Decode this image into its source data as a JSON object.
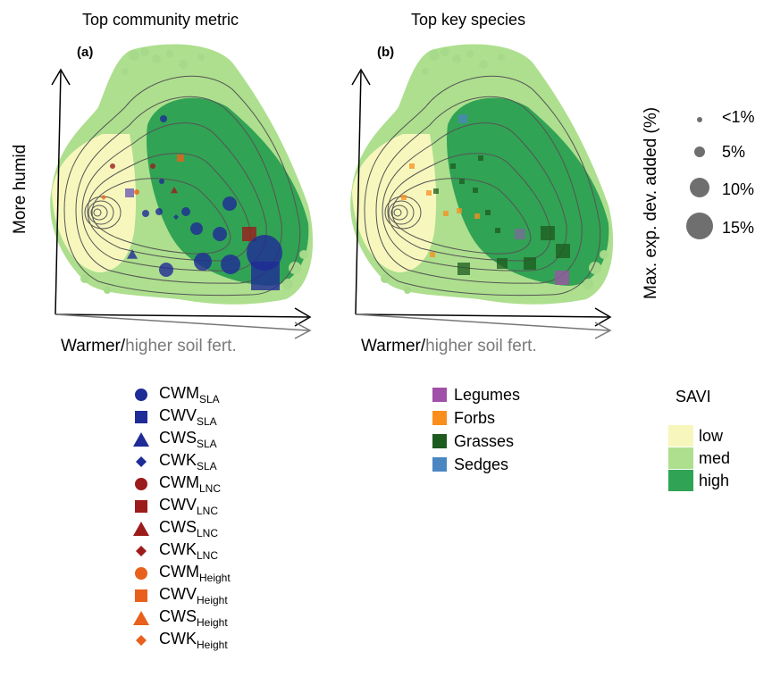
{
  "panels": [
    {
      "title": "Top community metric",
      "tag": "(a)"
    },
    {
      "title": "Top key species",
      "tag": "(b)"
    }
  ],
  "axes": {
    "y_label": "More humid",
    "x_label_warm": "Warmer/",
    "x_label_soil": "higher soil fert."
  },
  "size_legend": {
    "title": "Max. exp. dev. added (%)",
    "items": [
      "<1%",
      "5%",
      "10%",
      "15%"
    ],
    "values": [
      1,
      5,
      10,
      15
    ]
  },
  "metrics_legend": [
    {
      "base": "CWM",
      "sub": "SLA",
      "shape": "circle",
      "color": "#1f2b96"
    },
    {
      "base": "CWV",
      "sub": "SLA",
      "shape": "square",
      "color": "#1f2b96"
    },
    {
      "base": "CWS",
      "sub": "SLA",
      "shape": "triangle",
      "color": "#1f2b96"
    },
    {
      "base": "CWK",
      "sub": "SLA",
      "shape": "diamond",
      "color": "#1f2b96"
    },
    {
      "base": "CWM",
      "sub": "LNC",
      "shape": "circle",
      "color": "#9c1b1b"
    },
    {
      "base": "CWV",
      "sub": "LNC",
      "shape": "square",
      "color": "#9c1b1b"
    },
    {
      "base": "CWS",
      "sub": "LNC",
      "shape": "triangle",
      "color": "#9c1b1b"
    },
    {
      "base": "CWK",
      "sub": "LNC",
      "shape": "diamond",
      "color": "#9c1b1b"
    },
    {
      "base": "CWM",
      "sub": "Height",
      "shape": "circle",
      "color": "#e8601c"
    },
    {
      "base": "CWV",
      "sub": "Height",
      "shape": "square",
      "color": "#e8601c"
    },
    {
      "base": "CWS",
      "sub": "Height",
      "shape": "triangle",
      "color": "#e8601c"
    },
    {
      "base": "CWK",
      "sub": "Height",
      "shape": "diamond",
      "color": "#e8601c"
    }
  ],
  "species_legend": [
    {
      "label": "Legumes",
      "color": "#a050a8"
    },
    {
      "label": "Forbs",
      "color": "#f98e1c"
    },
    {
      "label": "Grasses",
      "color": "#1d5a1d"
    },
    {
      "label": "Sedges",
      "color": "#4a86c2"
    }
  ],
  "savi_legend": {
    "title": "SAVI",
    "items": [
      {
        "label": "low",
        "color": "#f7f7bd"
      },
      {
        "label": "med",
        "color": "#addf8e"
      },
      {
        "label": "high",
        "color": "#31a354"
      }
    ]
  }
}
